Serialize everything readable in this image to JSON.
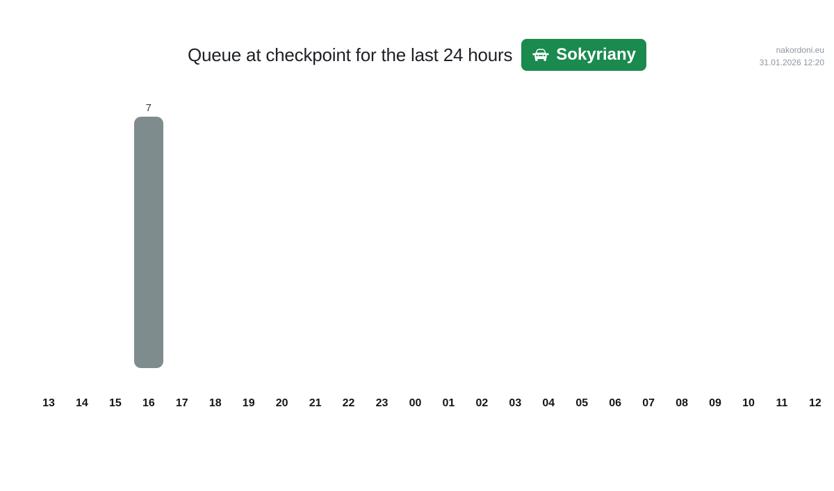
{
  "watermark": {
    "site": "nakordoni.eu",
    "timestamp": "31.01.2026 12:20"
  },
  "header": {
    "title": "Queue at checkpoint for the last 24 hours",
    "badge": {
      "label": "Sokyriany",
      "icon": "car-front-icon"
    }
  },
  "colors": {
    "badge_green": "#1a8a4e",
    "bar_gray": "#7f8c8d",
    "title_text": "#1d2025",
    "watermark_text": "#8d95a0",
    "axis_label_text": "#141414"
  },
  "chart_data": {
    "type": "bar",
    "categories": [
      "13",
      "14",
      "15",
      "16",
      "17",
      "18",
      "19",
      "20",
      "21",
      "22",
      "23",
      "00",
      "01",
      "02",
      "03",
      "04",
      "05",
      "06",
      "07",
      "08",
      "09",
      "10",
      "11",
      "12"
    ],
    "values": [
      0,
      0,
      0,
      7,
      0,
      0,
      0,
      0,
      0,
      0,
      0,
      0,
      0,
      0,
      0,
      0,
      0,
      0,
      0,
      0,
      0,
      0,
      0,
      0
    ],
    "title": "Queue at checkpoint for the last 24 hours",
    "xlabel": "",
    "ylabel": "",
    "ylim": [
      0,
      7
    ],
    "grid": false,
    "legend": false,
    "bar_color": "#7f8c8d",
    "value_labels": "shown above non-zero bars only"
  }
}
